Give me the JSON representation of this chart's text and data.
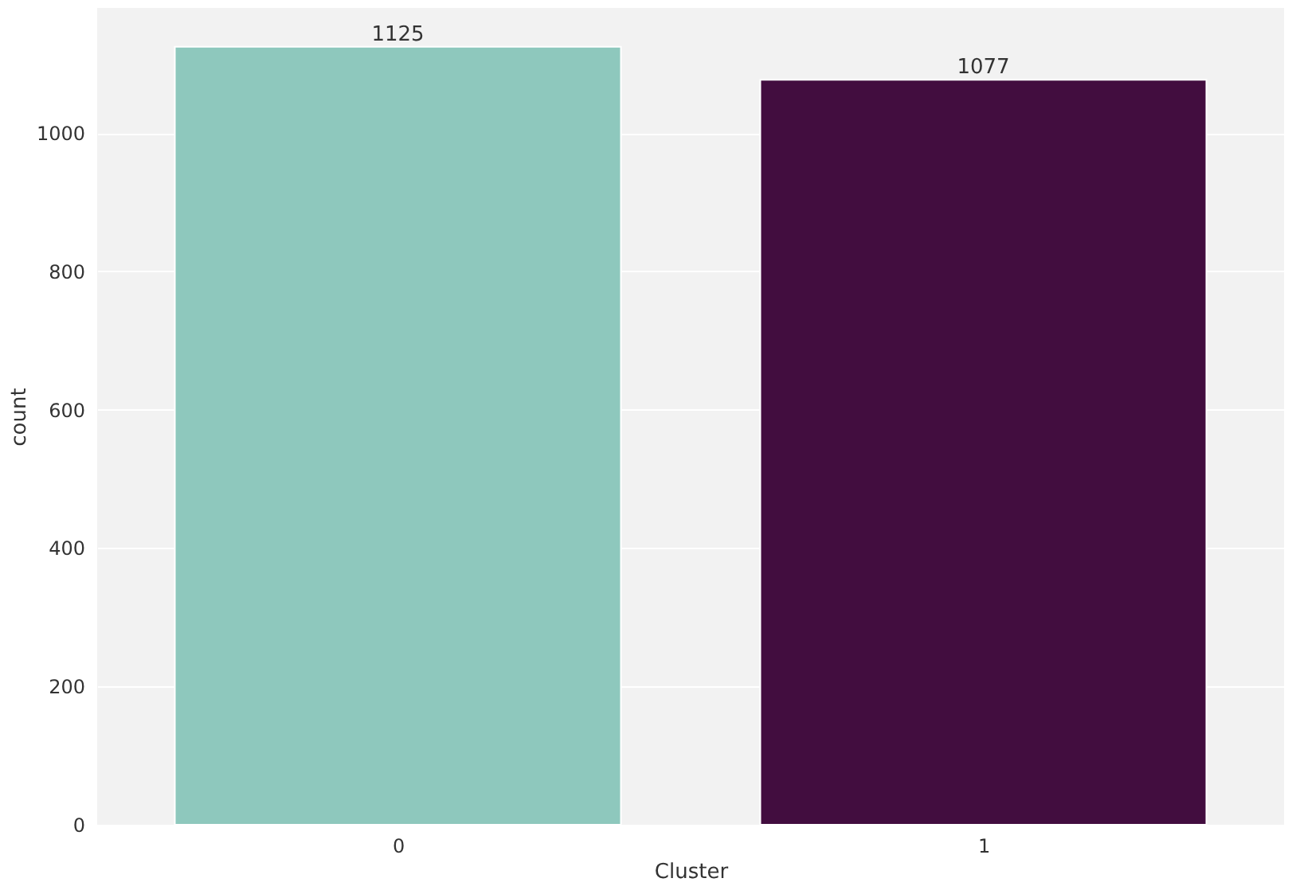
{
  "chart_data": {
    "type": "bar",
    "xlabel": "Cluster",
    "ylabel": "count",
    "categories": [
      "0",
      "1"
    ],
    "values": [
      1125,
      1077
    ],
    "colors": [
      "#8ec8bd",
      "#420d3f"
    ],
    "ylim": [
      0,
      1181
    ],
    "yticks": [
      0,
      200,
      400,
      600,
      800,
      1000
    ],
    "grid": "y",
    "data_labels": true
  }
}
